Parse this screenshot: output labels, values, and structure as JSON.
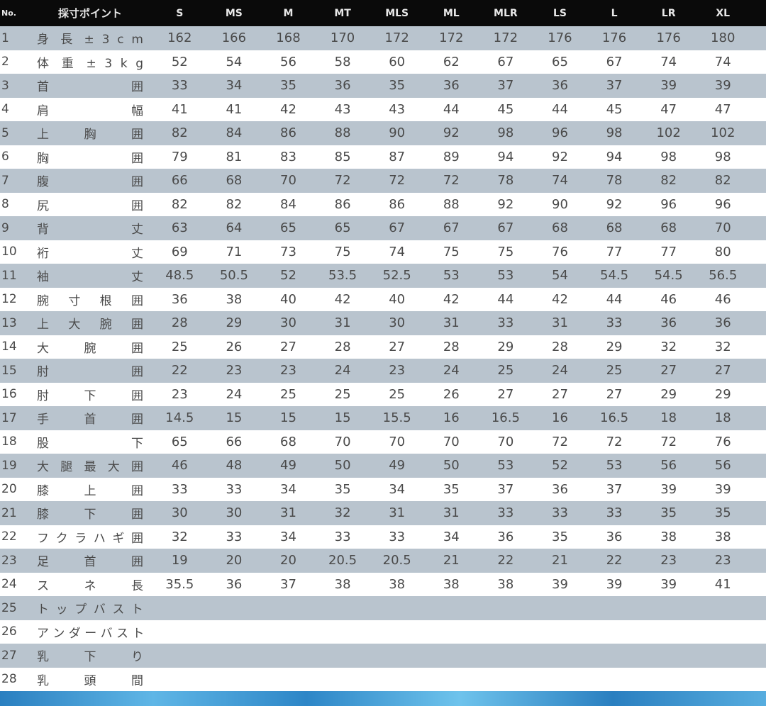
{
  "header": {
    "no": "No.",
    "point": "採寸ポイント",
    "sizes": [
      "S",
      "MS",
      "M",
      "MT",
      "MLS",
      "ML",
      "MLR",
      "LS",
      "L",
      "LR",
      "XL"
    ]
  },
  "rows": [
    {
      "no": "1",
      "label": "身 長 ± 3 c m",
      "values": [
        "162",
        "166",
        "168",
        "170",
        "172",
        "172",
        "172",
        "176",
        "176",
        "176",
        "180"
      ]
    },
    {
      "no": "2",
      "label": "体 重 ± 3 k g",
      "values": [
        "52",
        "54",
        "56",
        "58",
        "60",
        "62",
        "67",
        "65",
        "67",
        "74",
        "74"
      ]
    },
    {
      "no": "3",
      "label": "首 囲",
      "values": [
        "33",
        "34",
        "35",
        "36",
        "35",
        "36",
        "37",
        "36",
        "37",
        "39",
        "39"
      ]
    },
    {
      "no": "4",
      "label": "肩 幅",
      "values": [
        "41",
        "41",
        "42",
        "43",
        "43",
        "44",
        "45",
        "44",
        "45",
        "47",
        "47"
      ]
    },
    {
      "no": "5",
      "label": "上 胸 囲",
      "values": [
        "82",
        "84",
        "86",
        "88",
        "90",
        "92",
        "98",
        "96",
        "98",
        "102",
        "102"
      ]
    },
    {
      "no": "6",
      "label": "胸 囲",
      "values": [
        "79",
        "81",
        "83",
        "85",
        "87",
        "89",
        "94",
        "92",
        "94",
        "98",
        "98"
      ]
    },
    {
      "no": "7",
      "label": "腹 囲",
      "values": [
        "66",
        "68",
        "70",
        "72",
        "72",
        "72",
        "78",
        "74",
        "78",
        "82",
        "82"
      ]
    },
    {
      "no": "8",
      "label": "尻 囲",
      "values": [
        "82",
        "82",
        "84",
        "86",
        "86",
        "88",
        "92",
        "90",
        "92",
        "96",
        "96"
      ]
    },
    {
      "no": "9",
      "label": "背 丈",
      "values": [
        "63",
        "64",
        "65",
        "65",
        "67",
        "67",
        "67",
        "68",
        "68",
        "68",
        "70"
      ]
    },
    {
      "no": "10",
      "label": "裄 丈",
      "values": [
        "69",
        "71",
        "73",
        "75",
        "74",
        "75",
        "75",
        "76",
        "77",
        "77",
        "80"
      ]
    },
    {
      "no": "11",
      "label": "袖 丈",
      "values": [
        "48.5",
        "50.5",
        "52",
        "53.5",
        "52.5",
        "53",
        "53",
        "54",
        "54.5",
        "54.5",
        "56.5"
      ]
    },
    {
      "no": "12",
      "label": "腕 寸 根 囲",
      "values": [
        "36",
        "38",
        "40",
        "42",
        "40",
        "42",
        "44",
        "42",
        "44",
        "46",
        "46"
      ]
    },
    {
      "no": "13",
      "label": "上 大 腕 囲",
      "values": [
        "28",
        "29",
        "30",
        "31",
        "30",
        "31",
        "33",
        "31",
        "33",
        "36",
        "36"
      ]
    },
    {
      "no": "14",
      "label": "大 腕 囲",
      "values": [
        "25",
        "26",
        "27",
        "28",
        "27",
        "28",
        "29",
        "28",
        "29",
        "32",
        "32"
      ]
    },
    {
      "no": "15",
      "label": "肘 囲",
      "values": [
        "22",
        "23",
        "23",
        "24",
        "23",
        "24",
        "25",
        "24",
        "25",
        "27",
        "27"
      ]
    },
    {
      "no": "16",
      "label": "肘 下 囲",
      "values": [
        "23",
        "24",
        "25",
        "25",
        "25",
        "26",
        "27",
        "27",
        "27",
        "29",
        "29"
      ]
    },
    {
      "no": "17",
      "label": "手 首 囲",
      "values": [
        "14.5",
        "15",
        "15",
        "15",
        "15.5",
        "16",
        "16.5",
        "16",
        "16.5",
        "18",
        "18"
      ]
    },
    {
      "no": "18",
      "label": "股 下",
      "values": [
        "65",
        "66",
        "68",
        "70",
        "70",
        "70",
        "70",
        "72",
        "72",
        "72",
        "76"
      ]
    },
    {
      "no": "19",
      "label": "大 腿 最 大 囲",
      "values": [
        "46",
        "48",
        "49",
        "50",
        "49",
        "50",
        "53",
        "52",
        "53",
        "56",
        "56"
      ]
    },
    {
      "no": "20",
      "label": "膝 上 囲",
      "values": [
        "33",
        "33",
        "34",
        "35",
        "34",
        "35",
        "37",
        "36",
        "37",
        "39",
        "39"
      ]
    },
    {
      "no": "21",
      "label": "膝 下 囲",
      "values": [
        "30",
        "30",
        "31",
        "32",
        "31",
        "31",
        "33",
        "33",
        "33",
        "35",
        "35"
      ]
    },
    {
      "no": "22",
      "label": "フ ク ラ ハ ギ 囲",
      "values": [
        "32",
        "33",
        "34",
        "33",
        "33",
        "34",
        "36",
        "35",
        "36",
        "38",
        "38"
      ]
    },
    {
      "no": "23",
      "label": "足 首 囲",
      "values": [
        "19",
        "20",
        "20",
        "20.5",
        "20.5",
        "21",
        "22",
        "21",
        "22",
        "23",
        "23"
      ]
    },
    {
      "no": "24",
      "label": "ス ネ 長",
      "values": [
        "35.5",
        "36",
        "37",
        "38",
        "38",
        "38",
        "38",
        "39",
        "39",
        "39",
        "41"
      ]
    },
    {
      "no": "25",
      "label": "ト ッ プ バ ス ト",
      "values": []
    },
    {
      "no": "26",
      "label": "ア ン ダ ー バ ス ト",
      "values": []
    },
    {
      "no": "27",
      "label": "乳 下 り",
      "values": []
    },
    {
      "no": "28",
      "label": "乳 頭 間",
      "values": []
    }
  ],
  "colors": {
    "header_bg": "#0a0a0a",
    "stripe": "#b9c4ce",
    "text": "#4a4a4a"
  }
}
